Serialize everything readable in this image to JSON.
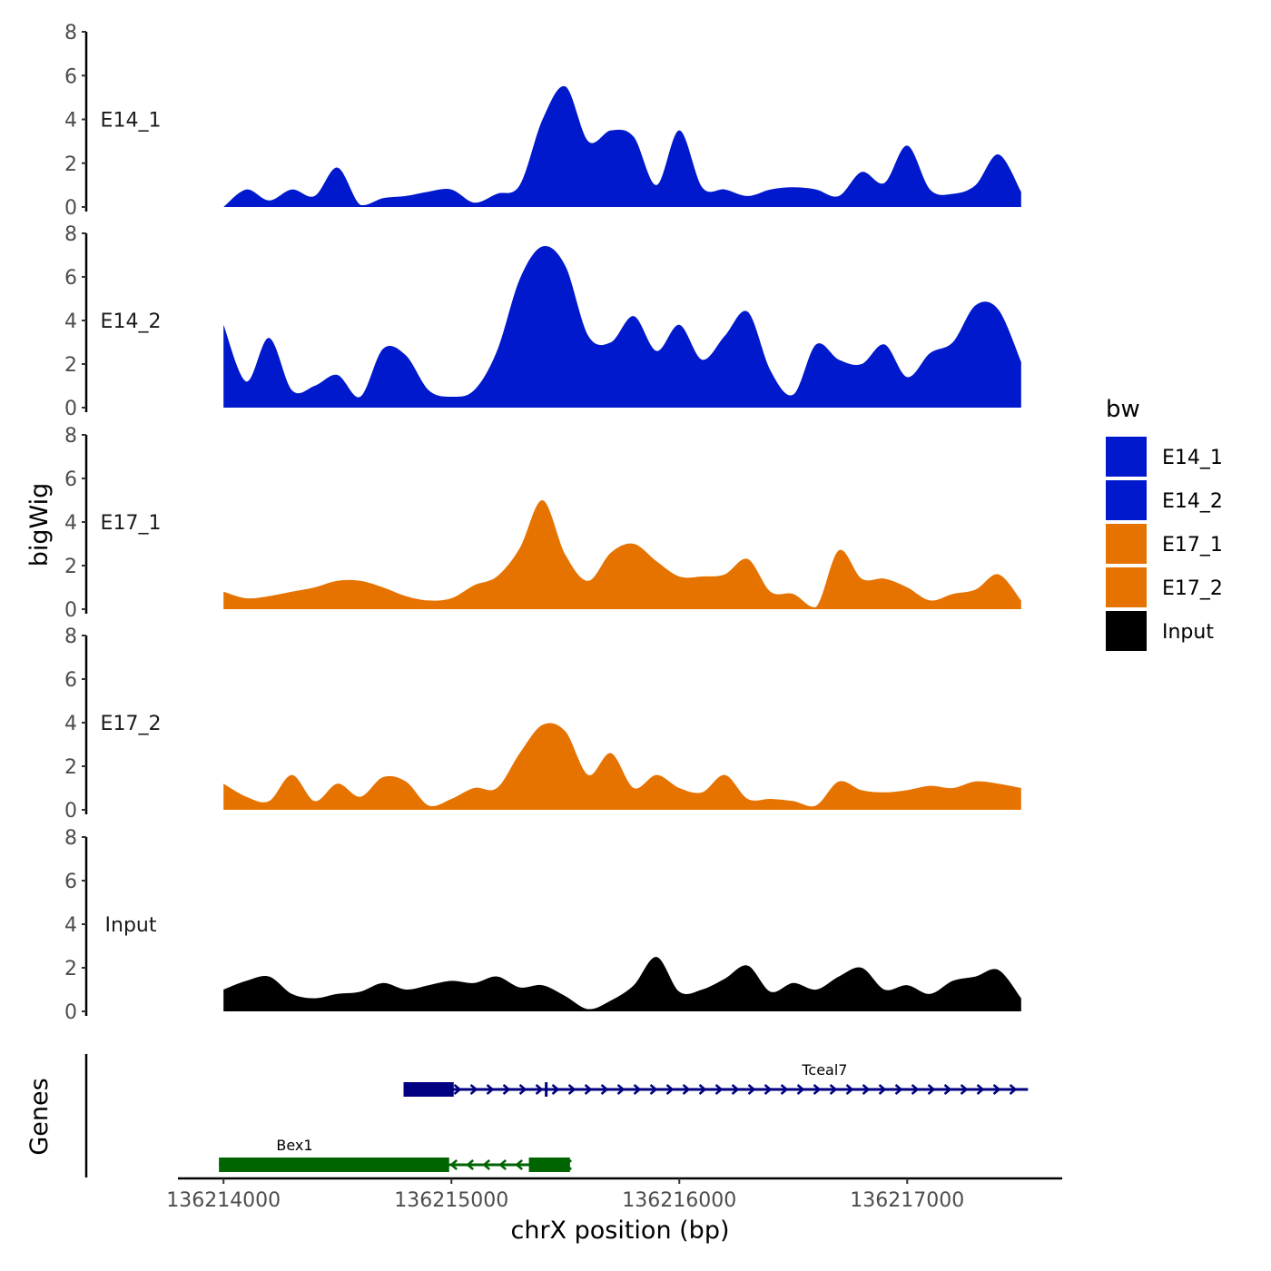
{
  "chart_data": {
    "type": "area",
    "chromosome": "chrX",
    "xlabel": "chrX position (bp)",
    "ylabel": "bigWig",
    "genes_axis_label": "Genes",
    "xlim": [
      136213800,
      136217680
    ],
    "ylim": [
      0,
      8
    ],
    "y_ticks": [
      0,
      2,
      4,
      6,
      8
    ],
    "x_ticks": [
      136214000,
      136215000,
      136216000,
      136217000
    ],
    "x_tick_labels": [
      "136214000",
      "136215000",
      "136216000",
      "136217000"
    ],
    "legend": {
      "title": "bw",
      "entries": [
        {
          "label": "E14_1",
          "color": "#0019CC"
        },
        {
          "label": "E14_2",
          "color": "#0019CC"
        },
        {
          "label": "E17_1",
          "color": "#E67300"
        },
        {
          "label": "E17_2",
          "color": "#E67300"
        },
        {
          "label": "Input",
          "color": "#000000"
        }
      ]
    },
    "x_positions": [
      136214000,
      136214100,
      136214200,
      136214300,
      136214400,
      136214500,
      136214600,
      136214700,
      136214800,
      136214900,
      136215000,
      136215100,
      136215200,
      136215300,
      136215400,
      136215500,
      136215600,
      136215700,
      136215800,
      136215900,
      136216000,
      136216100,
      136216200,
      136216300,
      136216400,
      136216500,
      136216600,
      136216700,
      136216800,
      136216900,
      136217000,
      136217100,
      136217200,
      136217300,
      136217400,
      136217500
    ],
    "series": [
      {
        "name": "E14_1",
        "color": "#0019CC",
        "values": [
          0,
          0.8,
          0.3,
          0.8,
          0.5,
          1.8,
          0.1,
          0.4,
          0.5,
          0.7,
          0.8,
          0.2,
          0.6,
          1.0,
          4.0,
          5.5,
          3.0,
          3.5,
          3.2,
          1.0,
          3.5,
          0.9,
          0.8,
          0.5,
          0.8,
          0.9,
          0.8,
          0.5,
          1.6,
          1.1,
          2.8,
          0.8,
          0.6,
          1.0,
          2.4,
          0.7
        ]
      },
      {
        "name": "E14_2",
        "color": "#0019CC",
        "values": [
          3.8,
          1.2,
          3.2,
          0.8,
          1.0,
          1.5,
          0.5,
          2.7,
          2.4,
          0.8,
          0.5,
          0.8,
          2.6,
          5.9,
          7.4,
          6.5,
          3.3,
          3.0,
          4.2,
          2.6,
          3.8,
          2.2,
          3.3,
          4.4,
          1.7,
          0.6,
          2.9,
          2.2,
          2.0,
          2.9,
          1.4,
          2.5,
          3.0,
          4.7,
          4.5,
          2.1
        ]
      },
      {
        "name": "E17_1",
        "color": "#E67300",
        "values": [
          0.8,
          0.5,
          0.6,
          0.8,
          1.0,
          1.3,
          1.3,
          1.0,
          0.6,
          0.4,
          0.5,
          1.1,
          1.5,
          2.8,
          5.0,
          2.5,
          1.3,
          2.6,
          3.0,
          2.2,
          1.5,
          1.5,
          1.6,
          2.3,
          0.8,
          0.7,
          0.1,
          2.7,
          1.4,
          1.4,
          1.0,
          0.4,
          0.7,
          0.9,
          1.6,
          0.4
        ]
      },
      {
        "name": "E17_2",
        "color": "#E67300",
        "values": [
          1.2,
          0.6,
          0.4,
          1.6,
          0.4,
          1.2,
          0.6,
          1.5,
          1.3,
          0.2,
          0.5,
          1.0,
          1.0,
          2.6,
          3.9,
          3.6,
          1.6,
          2.6,
          1.0,
          1.6,
          1.0,
          0.8,
          1.6,
          0.5,
          0.5,
          0.4,
          0.2,
          1.3,
          0.9,
          0.8,
          0.9,
          1.1,
          1.0,
          1.3,
          1.2,
          1.0
        ]
      },
      {
        "name": "Input",
        "color": "#000000",
        "values": [
          1.0,
          1.4,
          1.6,
          0.8,
          0.6,
          0.8,
          0.9,
          1.3,
          1.0,
          1.2,
          1.4,
          1.3,
          1.6,
          1.1,
          1.2,
          0.7,
          0.1,
          0.5,
          1.2,
          2.5,
          0.9,
          1.0,
          1.5,
          2.1,
          0.9,
          1.3,
          1.0,
          1.6,
          2.0,
          1.0,
          1.2,
          0.8,
          1.4,
          1.6,
          1.9,
          0.6
        ]
      }
    ],
    "genes": [
      {
        "name": "Tceal7",
        "color": "#000080",
        "strand": "+",
        "start": 136214790,
        "end": 136217530,
        "exons": [
          [
            136214790,
            136215010
          ],
          [
            136215410,
            136215420
          ]
        ]
      },
      {
        "name": "Bex1",
        "color": "#006400",
        "strand": "-",
        "start": 136213980,
        "end": 136215520,
        "exons": [
          [
            136213980,
            136214990
          ],
          [
            136215340,
            136215520
          ]
        ]
      }
    ]
  }
}
